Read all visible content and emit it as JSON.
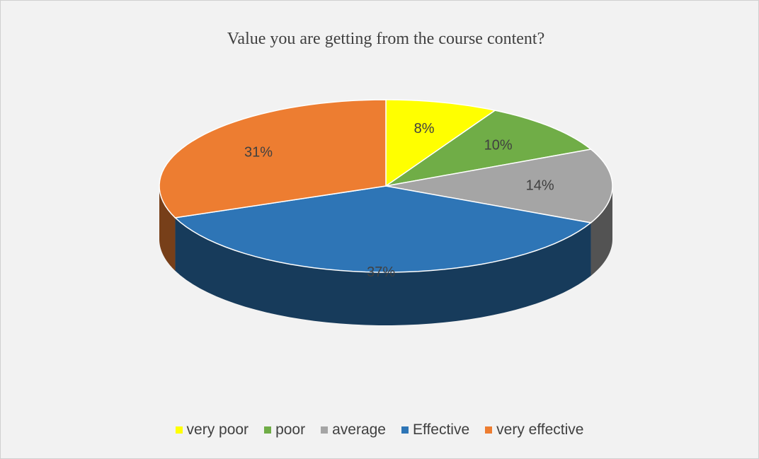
{
  "chart_data": {
    "type": "pie",
    "title": "Value you are getting from the course content?",
    "categories": [
      "very poor",
      "poor",
      "average",
      "Effective",
      "very effective"
    ],
    "values": [
      8,
      10,
      14,
      37,
      31
    ],
    "value_labels": [
      "8%",
      "10%",
      "14%",
      "37%",
      "31%"
    ],
    "colors": [
      "#ffff00",
      "#70ad47",
      "#a5a5a5",
      "#2e75b6",
      "#ed7d31"
    ],
    "legend": "bottom"
  }
}
